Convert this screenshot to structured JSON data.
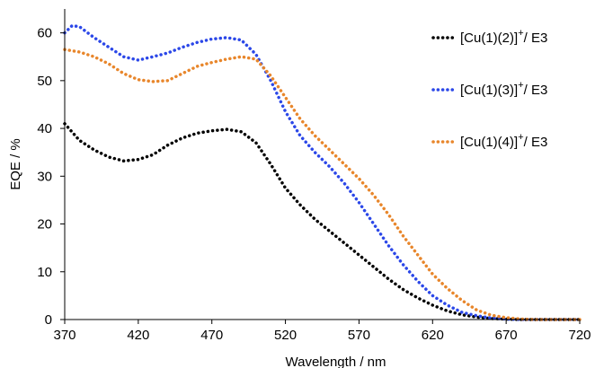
{
  "chart_data": {
    "type": "line",
    "xlabel": "Wavelength / nm",
    "ylabel": "EQE / %",
    "xlim": [
      370,
      720
    ],
    "ylim": [
      0,
      65
    ],
    "xticks": [
      370,
      420,
      470,
      520,
      570,
      620,
      670,
      720
    ],
    "yticks": [
      0,
      10,
      20,
      30,
      40,
      50,
      60
    ],
    "legend_position": "top-right",
    "grid": false,
    "line_style": "dotted",
    "series": [
      {
        "name": "[Cu(1)(2)]+/ E3",
        "label_main": "[Cu(1)(2)]",
        "label_sup": "+",
        "label_suffix": "/ E3",
        "color": "#000000",
        "x": [
          370,
          380,
          390,
          400,
          410,
          420,
          430,
          440,
          450,
          460,
          470,
          480,
          490,
          500,
          510,
          520,
          530,
          540,
          550,
          560,
          570,
          580,
          590,
          600,
          610,
          620,
          630,
          640,
          650,
          660,
          670,
          680,
          690,
          700,
          710,
          720
        ],
        "y": [
          41,
          37.5,
          35.5,
          34,
          33.2,
          33.5,
          34.5,
          36.5,
          38,
          39,
          39.5,
          39.8,
          39.3,
          37,
          32.5,
          27.5,
          24,
          21,
          18.5,
          16,
          13.5,
          11,
          8.5,
          6.3,
          4.5,
          3,
          1.8,
          1,
          0.5,
          0.2,
          0.1,
          0,
          0,
          0,
          0,
          0
        ]
      },
      {
        "name": "[Cu(1)(3)]+/ E3",
        "label_main": "[Cu(1)(3)]",
        "label_sup": "+",
        "label_suffix": "/ E3",
        "color": "#2b47e8",
        "x": [
          370,
          375,
          380,
          390,
          400,
          410,
          420,
          430,
          440,
          450,
          460,
          470,
          480,
          490,
          500,
          510,
          520,
          530,
          540,
          550,
          560,
          570,
          580,
          590,
          600,
          610,
          620,
          630,
          640,
          650,
          660,
          670,
          680,
          690,
          700,
          710,
          720
        ],
        "y": [
          60,
          61.5,
          61.3,
          59,
          57,
          55,
          54.3,
          55,
          55.8,
          57,
          58,
          58.7,
          59,
          58.5,
          55.5,
          50,
          43.5,
          38.5,
          35,
          32,
          28.5,
          24.5,
          20,
          15.5,
          11.5,
          8,
          5,
          3,
          1.5,
          0.8,
          0.3,
          0.1,
          0,
          0,
          0,
          0,
          0
        ]
      },
      {
        "name": "[Cu(1)(4)]+/ E3",
        "label_main": "[Cu(1)(4)]",
        "label_sup": "+",
        "label_suffix": "/ E3",
        "color": "#e8862b",
        "x": [
          370,
          380,
          390,
          400,
          410,
          420,
          430,
          440,
          450,
          460,
          470,
          480,
          490,
          500,
          510,
          520,
          530,
          540,
          550,
          560,
          570,
          580,
          590,
          600,
          610,
          620,
          630,
          640,
          650,
          660,
          670,
          680,
          690,
          700,
          710,
          720
        ],
        "y": [
          56.5,
          56,
          55,
          53.5,
          51.5,
          50.2,
          49.8,
          50,
          51.5,
          53,
          53.8,
          54.5,
          55,
          54.5,
          51,
          46.5,
          42,
          38.5,
          35.5,
          32.5,
          29.5,
          26,
          22,
          17.5,
          13.5,
          9.5,
          6.5,
          4,
          2,
          0.9,
          0.4,
          0.1,
          0,
          0,
          0,
          0
        ]
      }
    ]
  }
}
